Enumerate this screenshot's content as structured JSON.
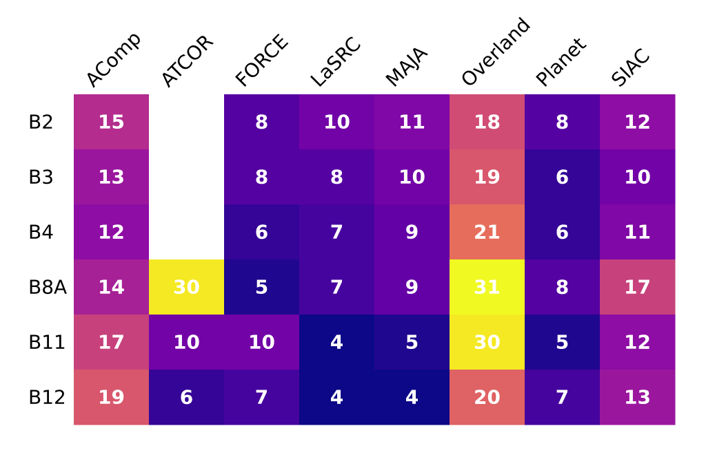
{
  "chart_data": {
    "type": "heatmap",
    "title": "",
    "xlabel": "",
    "ylabel": "",
    "columns": [
      "AComp",
      "ATCOR",
      "FORCE",
      "LaSRC",
      "MAJA",
      "Overland",
      "Planet",
      "SIAC"
    ],
    "rows": [
      "B2",
      "B3",
      "B4",
      "B8A",
      "B11",
      "B12"
    ],
    "values": [
      [
        15,
        null,
        8,
        10,
        11,
        18,
        8,
        12
      ],
      [
        13,
        null,
        8,
        8,
        10,
        19,
        6,
        10
      ],
      [
        12,
        null,
        6,
        7,
        9,
        21,
        6,
        11
      ],
      [
        14,
        30,
        5,
        7,
        9,
        31,
        8,
        17
      ],
      [
        17,
        10,
        10,
        4,
        5,
        30,
        5,
        12
      ],
      [
        19,
        6,
        7,
        4,
        4,
        20,
        7,
        13
      ]
    ],
    "color_scale": "plasma",
    "value_range": [
      4,
      31
    ],
    "value_label_color": "#ffffff",
    "missing_cell_color": "#ffffff",
    "grid": false,
    "legend": "none"
  }
}
